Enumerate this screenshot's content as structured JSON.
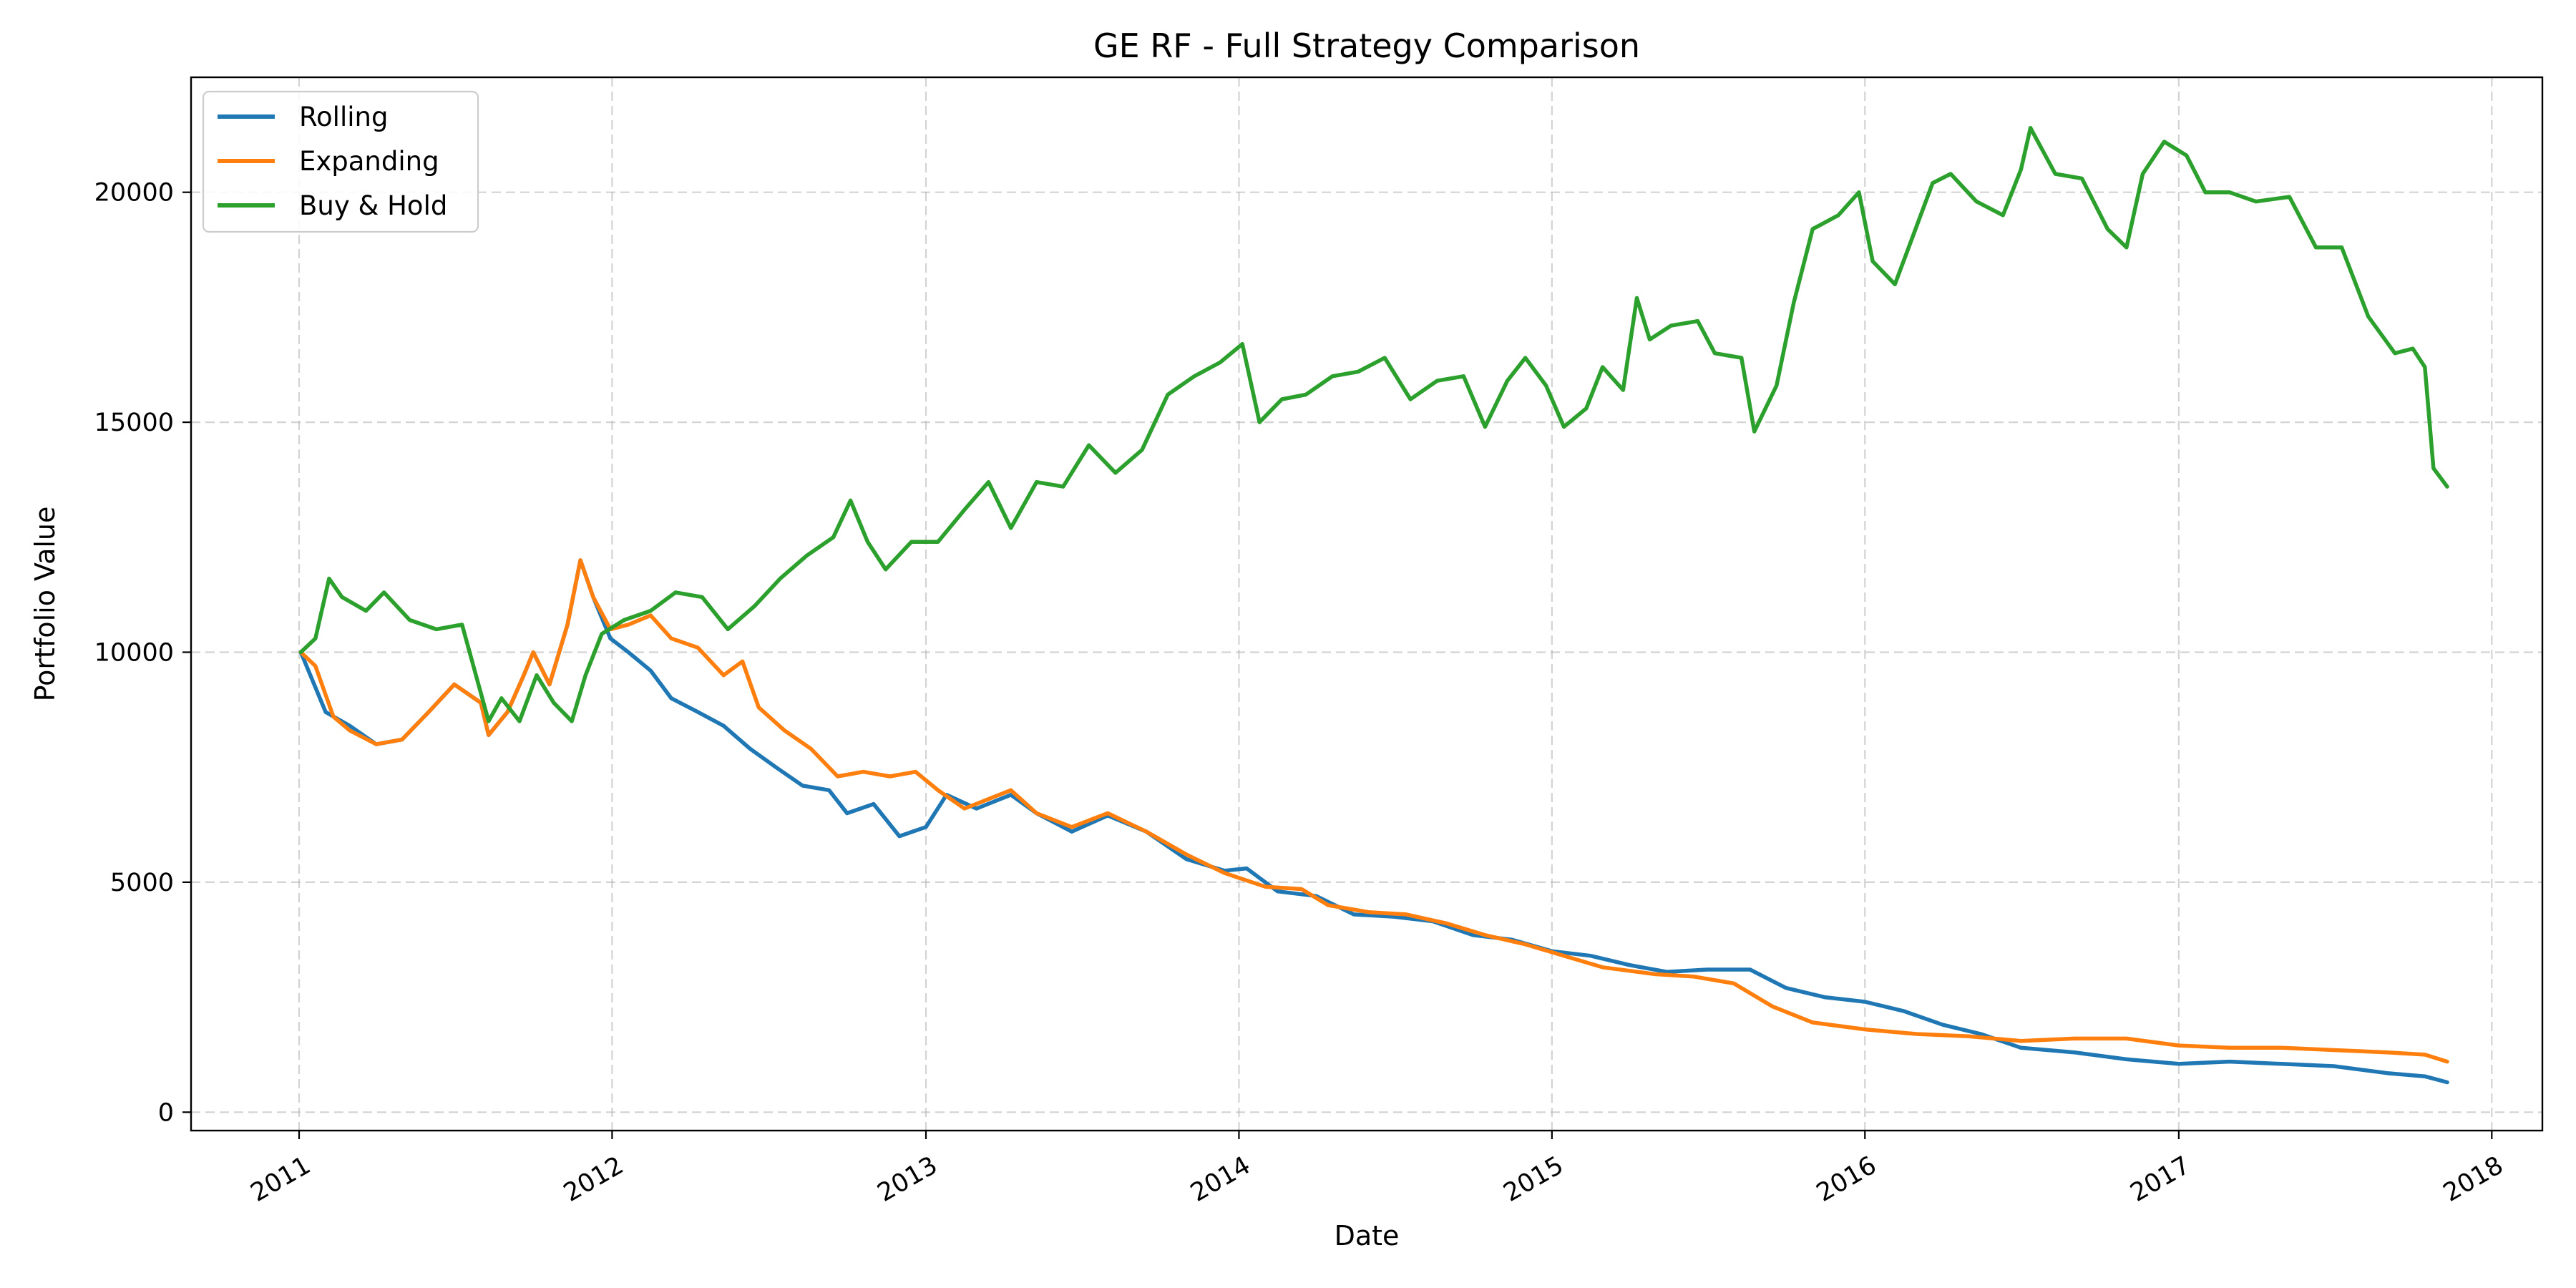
{
  "chart_data": {
    "type": "line",
    "title": "GE RF - Full Strategy Comparison",
    "xlabel": "Date",
    "ylabel": "Portfolio Value",
    "x_range": [
      "2010-08-28",
      "2018-03-01"
    ],
    "xlim": [
      "2010-08-28",
      "2018-03-01"
    ],
    "ylim": [
      -400,
      22500
    ],
    "x_ticks": [
      "2011",
      "2012",
      "2013",
      "2014",
      "2015",
      "2016",
      "2017",
      "2018"
    ],
    "x_tick_dates": [
      "2011-01-01",
      "2012-01-01",
      "2013-01-01",
      "2014-01-01",
      "2015-01-01",
      "2016-01-01",
      "2017-01-01",
      "2018-01-01"
    ],
    "y_ticks": [
      0,
      5000,
      10000,
      15000,
      20000
    ],
    "grid": true,
    "legend_position": "top-left",
    "series": [
      {
        "name": "Rolling",
        "color": "#1f77b4",
        "points": [
          [
            "2011-01-03",
            10000
          ],
          [
            "2011-02-01",
            8700
          ],
          [
            "2011-03-01",
            8400
          ],
          [
            "2011-04-01",
            8000
          ],
          [
            "2011-05-01",
            8100
          ],
          [
            "2011-06-01",
            8700
          ],
          [
            "2011-07-01",
            9300
          ],
          [
            "2011-08-01",
            8900
          ],
          [
            "2011-08-10",
            8200
          ],
          [
            "2011-09-01",
            8700
          ],
          [
            "2011-09-20",
            9500
          ],
          [
            "2011-10-01",
            10000
          ],
          [
            "2011-10-20",
            9300
          ],
          [
            "2011-11-10",
            10600
          ],
          [
            "2011-11-25",
            12000
          ],
          [
            "2011-12-10",
            11200
          ],
          [
            "2011-12-30",
            10300
          ],
          [
            "2012-01-20",
            10000
          ],
          [
            "2012-02-15",
            9600
          ],
          [
            "2012-03-10",
            9000
          ],
          [
            "2012-04-10",
            8700
          ],
          [
            "2012-05-10",
            8400
          ],
          [
            "2012-06-10",
            7900
          ],
          [
            "2012-07-10",
            7500
          ],
          [
            "2012-08-10",
            7100
          ],
          [
            "2012-09-10",
            7000
          ],
          [
            "2012-10-01",
            6500
          ],
          [
            "2012-11-01",
            6700
          ],
          [
            "2012-12-01",
            6000
          ],
          [
            "2013-01-01",
            6200
          ],
          [
            "2013-01-25",
            6900
          ],
          [
            "2013-03-01",
            6600
          ],
          [
            "2013-04-10",
            6900
          ],
          [
            "2013-05-10",
            6500
          ],
          [
            "2013-06-20",
            6100
          ],
          [
            "2013-08-01",
            6450
          ],
          [
            "2013-09-15",
            6100
          ],
          [
            "2013-11-01",
            5500
          ],
          [
            "2013-12-15",
            5250
          ],
          [
            "2014-01-10",
            5300
          ],
          [
            "2014-02-15",
            4800
          ],
          [
            "2014-04-01",
            4700
          ],
          [
            "2014-05-15",
            4300
          ],
          [
            "2014-07-01",
            4250
          ],
          [
            "2014-08-15",
            4150
          ],
          [
            "2014-10-01",
            3850
          ],
          [
            "2014-11-15",
            3750
          ],
          [
            "2015-01-01",
            3500
          ],
          [
            "2015-02-15",
            3400
          ],
          [
            "2015-04-01",
            3200
          ],
          [
            "2015-05-15",
            3050
          ],
          [
            "2015-07-01",
            3100
          ],
          [
            "2015-08-20",
            3100
          ],
          [
            "2015-10-01",
            2700
          ],
          [
            "2015-11-15",
            2500
          ],
          [
            "2016-01-01",
            2400
          ],
          [
            "2016-02-15",
            2200
          ],
          [
            "2016-04-01",
            1900
          ],
          [
            "2016-05-15",
            1700
          ],
          [
            "2016-07-01",
            1400
          ],
          [
            "2016-09-01",
            1300
          ],
          [
            "2016-11-01",
            1150
          ],
          [
            "2017-01-01",
            1050
          ],
          [
            "2017-03-01",
            1100
          ],
          [
            "2017-05-01",
            1050
          ],
          [
            "2017-07-01",
            1000
          ],
          [
            "2017-09-01",
            850
          ],
          [
            "2017-10-15",
            780
          ],
          [
            "2017-11-10",
            650
          ]
        ]
      },
      {
        "name": "Expanding",
        "color": "#ff7f0e",
        "points": [
          [
            "2011-01-03",
            10000
          ],
          [
            "2011-01-20",
            9700
          ],
          [
            "2011-02-10",
            8600
          ],
          [
            "2011-03-01",
            8300
          ],
          [
            "2011-04-01",
            8000
          ],
          [
            "2011-05-01",
            8100
          ],
          [
            "2011-06-01",
            8700
          ],
          [
            "2011-07-01",
            9300
          ],
          [
            "2011-08-01",
            8900
          ],
          [
            "2011-08-10",
            8200
          ],
          [
            "2011-09-01",
            8700
          ],
          [
            "2011-09-20",
            9500
          ],
          [
            "2011-10-01",
            10000
          ],
          [
            "2011-10-20",
            9300
          ],
          [
            "2011-11-10",
            10600
          ],
          [
            "2011-11-25",
            12000
          ],
          [
            "2011-12-10",
            11200
          ],
          [
            "2011-12-30",
            10500
          ],
          [
            "2012-01-20",
            10600
          ],
          [
            "2012-02-15",
            10800
          ],
          [
            "2012-03-10",
            10300
          ],
          [
            "2012-04-10",
            10100
          ],
          [
            "2012-05-10",
            9500
          ],
          [
            "2012-06-01",
            9800
          ],
          [
            "2012-06-20",
            8800
          ],
          [
            "2012-07-20",
            8300
          ],
          [
            "2012-08-20",
            7900
          ],
          [
            "2012-09-20",
            7300
          ],
          [
            "2012-10-20",
            7400
          ],
          [
            "2012-11-20",
            7300
          ],
          [
            "2012-12-20",
            7400
          ],
          [
            "2013-01-15",
            7000
          ],
          [
            "2013-02-15",
            6600
          ],
          [
            "2013-04-10",
            7000
          ],
          [
            "2013-05-10",
            6500
          ],
          [
            "2013-06-20",
            6200
          ],
          [
            "2013-08-01",
            6500
          ],
          [
            "2013-09-15",
            6100
          ],
          [
            "2013-11-01",
            5600
          ],
          [
            "2013-12-15",
            5200
          ],
          [
            "2014-02-01",
            4900
          ],
          [
            "2014-03-15",
            4850
          ],
          [
            "2014-04-15",
            4500
          ],
          [
            "2014-06-01",
            4350
          ],
          [
            "2014-07-15",
            4300
          ],
          [
            "2014-09-01",
            4100
          ],
          [
            "2014-10-15",
            3850
          ],
          [
            "2014-12-01",
            3650
          ],
          [
            "2015-01-15",
            3400
          ],
          [
            "2015-03-01",
            3150
          ],
          [
            "2015-05-01",
            3000
          ],
          [
            "2015-06-15",
            2950
          ],
          [
            "2015-08-01",
            2800
          ],
          [
            "2015-09-15",
            2300
          ],
          [
            "2015-11-01",
            1950
          ],
          [
            "2016-01-01",
            1800
          ],
          [
            "2016-03-01",
            1700
          ],
          [
            "2016-05-01",
            1650
          ],
          [
            "2016-07-01",
            1550
          ],
          [
            "2016-09-01",
            1600
          ],
          [
            "2016-11-01",
            1600
          ],
          [
            "2017-01-01",
            1450
          ],
          [
            "2017-03-01",
            1400
          ],
          [
            "2017-05-01",
            1400
          ],
          [
            "2017-07-01",
            1350
          ],
          [
            "2017-09-01",
            1300
          ],
          [
            "2017-10-15",
            1250
          ],
          [
            "2017-11-10",
            1100
          ]
        ]
      },
      {
        "name": "Buy & Hold",
        "color": "#2ca02c",
        "points": [
          [
            "2011-01-03",
            10000
          ],
          [
            "2011-01-20",
            10300
          ],
          [
            "2011-02-05",
            11600
          ],
          [
            "2011-02-20",
            11200
          ],
          [
            "2011-03-20",
            10900
          ],
          [
            "2011-04-10",
            11300
          ],
          [
            "2011-05-10",
            10700
          ],
          [
            "2011-06-10",
            10500
          ],
          [
            "2011-07-10",
            10600
          ],
          [
            "2011-08-10",
            8500
          ],
          [
            "2011-08-25",
            9000
          ],
          [
            "2011-09-15",
            8500
          ],
          [
            "2011-10-05",
            9500
          ],
          [
            "2011-10-25",
            8900
          ],
          [
            "2011-11-15",
            8500
          ],
          [
            "2011-12-01",
            9500
          ],
          [
            "2011-12-20",
            10400
          ],
          [
            "2012-01-15",
            10700
          ],
          [
            "2012-02-15",
            10900
          ],
          [
            "2012-03-15",
            11300
          ],
          [
            "2012-04-15",
            11200
          ],
          [
            "2012-05-15",
            10500
          ],
          [
            "2012-06-15",
            11000
          ],
          [
            "2012-07-15",
            11600
          ],
          [
            "2012-08-15",
            12100
          ],
          [
            "2012-09-15",
            12500
          ],
          [
            "2012-10-05",
            13300
          ],
          [
            "2012-10-25",
            12400
          ],
          [
            "2012-11-15",
            11800
          ],
          [
            "2012-12-15",
            12400
          ],
          [
            "2013-01-15",
            12400
          ],
          [
            "2013-02-15",
            13100
          ],
          [
            "2013-03-15",
            13700
          ],
          [
            "2013-04-10",
            12700
          ],
          [
            "2013-05-10",
            13700
          ],
          [
            "2013-06-10",
            13600
          ],
          [
            "2013-07-10",
            14500
          ],
          [
            "2013-08-10",
            13900
          ],
          [
            "2013-09-10",
            14400
          ],
          [
            "2013-10-10",
            15600
          ],
          [
            "2013-11-10",
            16000
          ],
          [
            "2013-12-10",
            16300
          ],
          [
            "2014-01-05",
            16700
          ],
          [
            "2014-01-25",
            15000
          ],
          [
            "2014-02-20",
            15500
          ],
          [
            "2014-03-20",
            15600
          ],
          [
            "2014-04-20",
            16000
          ],
          [
            "2014-05-20",
            16100
          ],
          [
            "2014-06-20",
            16400
          ],
          [
            "2014-07-20",
            15500
          ],
          [
            "2014-08-20",
            15900
          ],
          [
            "2014-09-20",
            16000
          ],
          [
            "2014-10-15",
            14900
          ],
          [
            "2014-11-10",
            15900
          ],
          [
            "2014-12-01",
            16400
          ],
          [
            "2014-12-25",
            15800
          ],
          [
            "2015-01-15",
            14900
          ],
          [
            "2015-02-10",
            15300
          ],
          [
            "2015-03-01",
            16200
          ],
          [
            "2015-03-25",
            15700
          ],
          [
            "2015-04-10",
            17700
          ],
          [
            "2015-04-25",
            16800
          ],
          [
            "2015-05-20",
            17100
          ],
          [
            "2015-06-20",
            17200
          ],
          [
            "2015-07-10",
            16500
          ],
          [
            "2015-08-10",
            16400
          ],
          [
            "2015-08-25",
            14800
          ],
          [
            "2015-09-20",
            15800
          ],
          [
            "2015-10-10",
            17600
          ],
          [
            "2015-11-01",
            19200
          ],
          [
            "2015-12-01",
            19500
          ],
          [
            "2015-12-25",
            20000
          ],
          [
            "2016-01-10",
            18500
          ],
          [
            "2016-02-05",
            18000
          ],
          [
            "2016-02-25",
            19000
          ],
          [
            "2016-03-20",
            20200
          ],
          [
            "2016-04-10",
            20400
          ],
          [
            "2016-05-10",
            19800
          ],
          [
            "2016-06-10",
            19500
          ],
          [
            "2016-07-01",
            20500
          ],
          [
            "2016-07-12",
            21400
          ],
          [
            "2016-08-10",
            20400
          ],
          [
            "2016-09-10",
            20300
          ],
          [
            "2016-10-10",
            19200
          ],
          [
            "2016-11-01",
            18800
          ],
          [
            "2016-11-20",
            20400
          ],
          [
            "2016-12-15",
            21100
          ],
          [
            "2017-01-10",
            20800
          ],
          [
            "2017-02-01",
            20000
          ],
          [
            "2017-03-01",
            20000
          ],
          [
            "2017-04-01",
            19800
          ],
          [
            "2017-05-10",
            19900
          ],
          [
            "2017-06-10",
            18800
          ],
          [
            "2017-07-10",
            18800
          ],
          [
            "2017-08-10",
            17300
          ],
          [
            "2017-09-10",
            16500
          ],
          [
            "2017-10-01",
            16600
          ],
          [
            "2017-10-15",
            16200
          ],
          [
            "2017-10-25",
            14000
          ],
          [
            "2017-11-10",
            13600
          ]
        ]
      }
    ]
  }
}
